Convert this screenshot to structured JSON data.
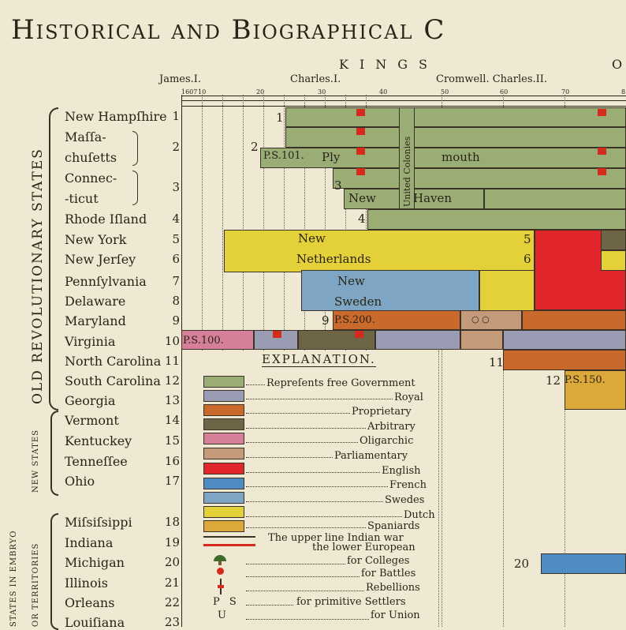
{
  "header": {
    "title": "Historical and Biographical C",
    "kings": "KINGS",
    "kings_cont": "O",
    "reigns": [
      "James.I.",
      "Charles.I.",
      "Cromwell. Charles.II."
    ],
    "ticks": [
      "1607",
      "10",
      "20",
      "30",
      "40",
      "50",
      "60",
      "70",
      "8"
    ]
  },
  "side_captions": {
    "old": "OLD REVOLUTIONARY STATES",
    "new": "NEW STATES",
    "embryo": "STATES IN EMBRYO",
    "territories": "OR TERRITORIES"
  },
  "states": [
    {
      "name": "New Hampſhire",
      "num": "1"
    },
    {
      "name": "Maſſa-",
      "num": ""
    },
    {
      "name": "chuſetts",
      "num": "2"
    },
    {
      "name": "Connec-",
      "num": ""
    },
    {
      "name": "-ticut",
      "num": "3"
    },
    {
      "name": "Rhode Iſland",
      "num": "4"
    },
    {
      "name": "New York",
      "num": "5"
    },
    {
      "name": "New Jerſey",
      "num": "6"
    },
    {
      "name": "Pennſylvania",
      "num": "7"
    },
    {
      "name": "Delaware",
      "num": "8"
    },
    {
      "name": "Maryland",
      "num": "9"
    },
    {
      "name": "Virginia",
      "num": "10"
    },
    {
      "name": "North Carolina",
      "num": "11"
    },
    {
      "name": "South Carolina",
      "num": "12"
    },
    {
      "name": "Georgia",
      "num": "13"
    },
    {
      "name": "Vermont",
      "num": "14"
    },
    {
      "name": "Kentuckey",
      "num": "15"
    },
    {
      "name": "Tenneſſee",
      "num": "16"
    },
    {
      "name": "Ohio",
      "num": "17"
    },
    {
      "name": "Miſsiſsippi",
      "num": "18"
    },
    {
      "name": "Indiana",
      "num": "19"
    },
    {
      "name": "Michigan",
      "num": "20"
    },
    {
      "name": "Illinois",
      "num": "21"
    },
    {
      "name": "Orleans",
      "num": "22"
    },
    {
      "name": "Louiſiana",
      "num": "23"
    }
  ],
  "bar_labels": {
    "n1": "1",
    "n2": "2",
    "n3": "3",
    "n4": "4",
    "ps101": "P.S.101.",
    "ply": "Ply",
    "mouth": "mouth",
    "united": "United Colonies",
    "new_haven_a": "New",
    "new_haven_b": "Haven",
    "new_neth_a": "New",
    "new_neth_b": "Netherlands",
    "n5": "5",
    "n6": "6",
    "new_swe_a": "New",
    "new_swe_b": "Sweden",
    "n9": "9",
    "ps200": "P.S.200.",
    "ps100": "P.S.100.",
    "n11": "11",
    "n12": "12",
    "ps150": "P.S.150.",
    "n20": "20",
    "circles": "○ ○"
  },
  "explanation": {
    "title": "EXPLANATION.",
    "items": [
      {
        "text": "Repreſents free Government",
        "color": "#9aad74"
      },
      {
        "text": "Royal",
        "color": "#9a9cb4"
      },
      {
        "text": "Proprietary",
        "color": "#c96a2c"
      },
      {
        "text": "Arbitrary",
        "color": "#6e6446"
      },
      {
        "text": "Oligarchic",
        "color": "#d67f98"
      },
      {
        "text": "Parliamentary",
        "color": "#c49a7a"
      },
      {
        "text": "English",
        "color": "#e0262a"
      },
      {
        "text": "French",
        "color": "#4f8cc4"
      },
      {
        "text": "Swedes",
        "color": "#7ea6c4"
      },
      {
        "text": "Dutch",
        "color": "#e4d038"
      },
      {
        "text": "Spaniards",
        "color": "#dca83a"
      }
    ],
    "war_a": "The upper line Indian war",
    "war_b": "the lower European",
    "colleges": "for Colleges",
    "battles": "for Battles",
    "rebellions": "Rebellions",
    "ps": "P S",
    "settlers": "for primitive Settlers",
    "u": "U",
    "union": "for Union"
  },
  "colors": {
    "free": "#9aad74",
    "royal": "#9a9cb4",
    "proprietary": "#c96a2c",
    "arbitrary": "#6e6446",
    "oligarchic": "#d67f98",
    "parliamentary": "#c49a7a",
    "english": "#e0262a",
    "french": "#4f8cc4",
    "swedes": "#7ea6c4",
    "dutch": "#e4d038",
    "spaniards": "#dca83a"
  }
}
